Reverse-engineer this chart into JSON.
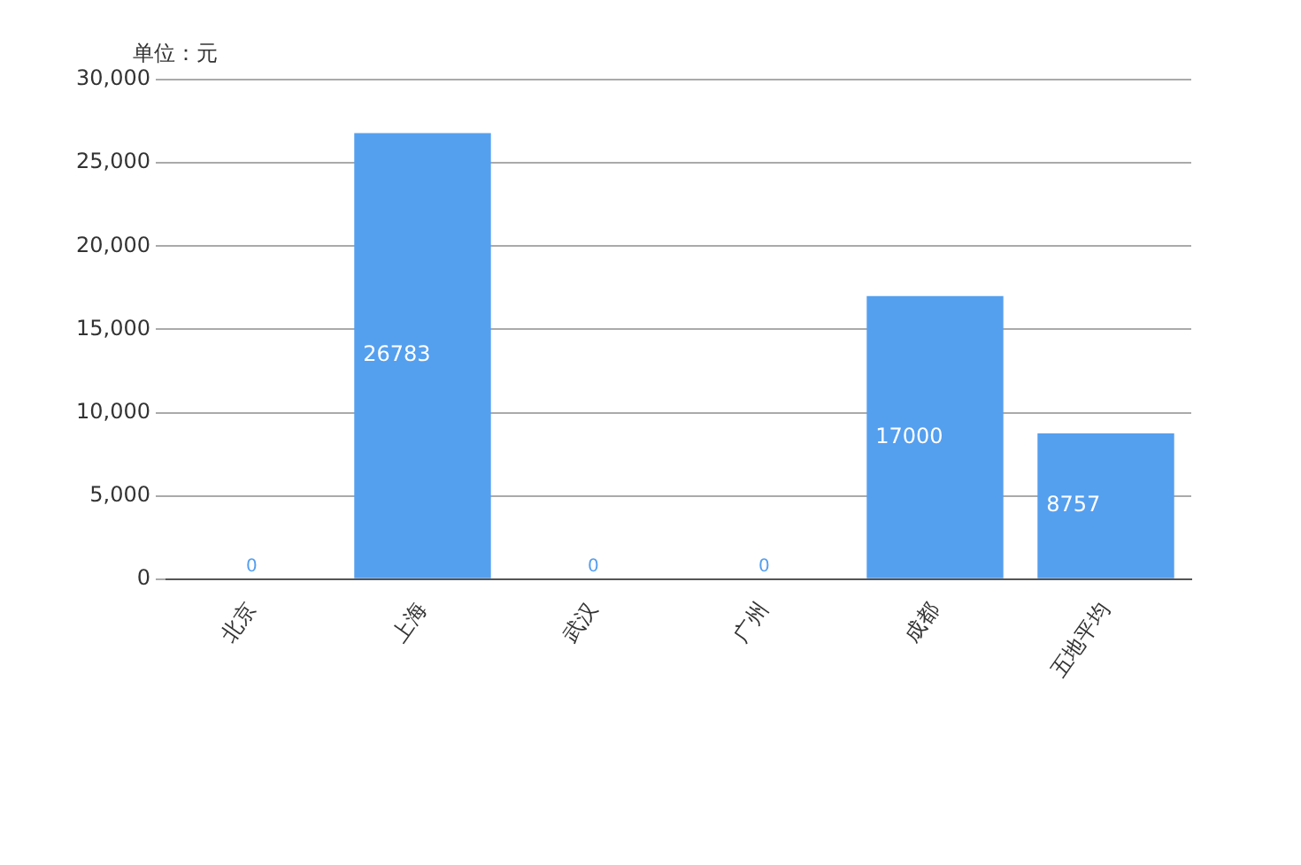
{
  "chart_data": {
    "type": "bar",
    "ylabel": "单位：元",
    "categories": [
      "北京",
      "上海",
      "武汉",
      "广州",
      "成都",
      "五地平均"
    ],
    "series": [
      {
        "color": "#559fef",
        "values": [
          0,
          26783,
          0,
          0,
          17000,
          8757
        ]
      }
    ],
    "ylim": [
      0,
      30000
    ],
    "yticks": [
      {
        "value": 0,
        "label": "0"
      },
      {
        "value": 5000,
        "label": "5,000"
      },
      {
        "value": 10000,
        "label": "10,000"
      },
      {
        "value": 15000,
        "label": "15,000"
      },
      {
        "value": 20000,
        "label": "20,000"
      },
      {
        "value": 25000,
        "label": "25,000"
      },
      {
        "value": 30000,
        "label": "30,000"
      }
    ],
    "grid": "y",
    "data_labels": true,
    "legend": false
  }
}
